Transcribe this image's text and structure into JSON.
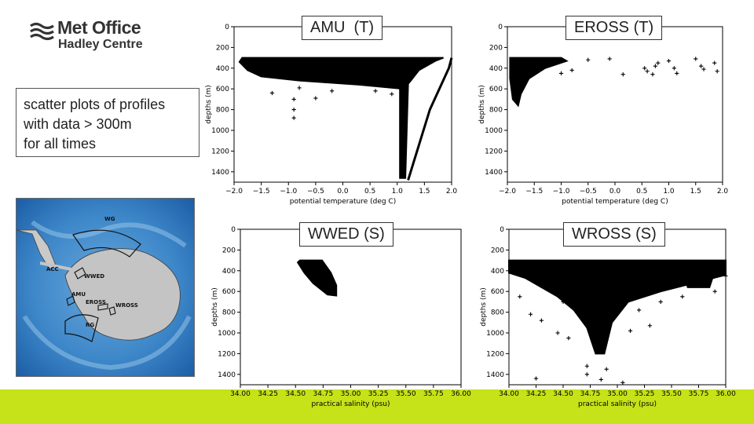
{
  "logo": {
    "line1": "Met Office",
    "line2": "Hadley Centre"
  },
  "note": {
    "lines": [
      "scatter plots of profiles",
      "with data > 300m",
      "for all times"
    ]
  },
  "map": {
    "labels": [
      "WG",
      "ACC",
      "WWED",
      "AMU",
      "EROSS",
      "WROSS",
      "RG"
    ]
  },
  "colors": {
    "footer": "#c6e218",
    "marker": "#000000"
  },
  "chart_data": [
    {
      "type": "scatter",
      "title": "AMU  (T)",
      "xlabel": "potential temperature (deg C)",
      "ylabel": "depths (m)",
      "xlim": [
        -2.0,
        2.0
      ],
      "ylim": [
        1500,
        0
      ],
      "marker": "+",
      "xticks": [
        "−2.0",
        "−1.5",
        "−1.0",
        "−0.5",
        "0.0",
        "0.5",
        "1.0",
        "1.5",
        "2.0"
      ],
      "yticks": [
        "0",
        "200",
        "400",
        "600",
        "800",
        "1000",
        "1200",
        "1400"
      ],
      "xtick_values": [
        -2.0,
        -1.5,
        -1.0,
        -0.5,
        0.0,
        0.5,
        1.0,
        1.5,
        2.0
      ],
      "ytick_values": [
        0,
        200,
        400,
        600,
        800,
        1000,
        1200,
        1400
      ],
      "regions": [
        [
          [
            -1.85,
            300
          ],
          [
            1.85,
            300
          ],
          [
            1.7,
            330
          ],
          [
            1.4,
            420
          ],
          [
            1.25,
            520
          ],
          [
            1.12,
            600
          ],
          [
            0.3,
            560
          ],
          [
            -0.8,
            520
          ],
          [
            -1.5,
            480
          ],
          [
            -1.75,
            420
          ],
          [
            -1.9,
            340
          ]
        ],
        [
          [
            1.05,
            560
          ],
          [
            1.2,
            560
          ],
          [
            1.15,
            1460
          ],
          [
            1.05,
            1460
          ]
        ]
      ],
      "lines": [
        [
          [
            1.2,
            1480
          ],
          [
            1.6,
            800
          ],
          [
            1.95,
            400
          ],
          [
            2.0,
            300
          ]
        ]
      ],
      "points": [
        [
          -1.3,
          640
        ],
        [
          -0.9,
          700
        ],
        [
          -0.8,
          590
        ],
        [
          -0.2,
          620
        ],
        [
          -0.5,
          690
        ],
        [
          -0.9,
          800
        ],
        [
          -0.9,
          880
        ],
        [
          0.6,
          620
        ],
        [
          0.9,
          650
        ]
      ]
    },
    {
      "type": "scatter",
      "title": "EROSS (T)",
      "xlabel": "potential temperature (deg C)",
      "ylabel": "depths (m)",
      "xlim": [
        -2.0,
        2.0
      ],
      "ylim": [
        1500,
        0
      ],
      "marker": "+",
      "xticks": [
        "−2.0",
        "−1.5",
        "−1.0",
        "−0.5",
        "0.0",
        "0.5",
        "1.0",
        "1.5",
        "2.0"
      ],
      "yticks": [
        "0",
        "200",
        "400",
        "600",
        "800",
        "1000",
        "1200",
        "1400"
      ],
      "xtick_values": [
        -2.0,
        -1.5,
        -1.0,
        -0.5,
        0.0,
        0.5,
        1.0,
        1.5,
        2.0
      ],
      "ytick_values": [
        0,
        200,
        400,
        600,
        800,
        1000,
        1200,
        1400
      ],
      "regions": [
        [
          [
            -1.95,
            300
          ],
          [
            -1.0,
            300
          ],
          [
            -0.9,
            330
          ],
          [
            -1.3,
            400
          ],
          [
            -1.6,
            500
          ],
          [
            -1.75,
            650
          ],
          [
            -1.8,
            760
          ],
          [
            -1.9,
            700
          ],
          [
            -1.95,
            500
          ]
        ]
      ],
      "lines": [],
      "points": [
        [
          -0.5,
          320
        ],
        [
          -0.1,
          310
        ],
        [
          0.55,
          400
        ],
        [
          0.6,
          430
        ],
        [
          0.75,
          380
        ],
        [
          0.7,
          460
        ],
        [
          0.8,
          350
        ],
        [
          1.0,
          330
        ],
        [
          1.1,
          400
        ],
        [
          1.15,
          450
        ],
        [
          1.5,
          310
        ],
        [
          1.6,
          380
        ],
        [
          1.65,
          410
        ],
        [
          1.85,
          350
        ],
        [
          1.9,
          430
        ],
        [
          0.15,
          460
        ],
        [
          -0.8,
          420
        ],
        [
          -1.0,
          450
        ]
      ]
    },
    {
      "type": "scatter",
      "title": "WWED (S)",
      "xlabel": "practical salinity (psu)",
      "ylabel": "depths (m)",
      "xlim": [
        34.0,
        36.0
      ],
      "ylim": [
        1500,
        0
      ],
      "marker": "+",
      "xticks": [
        "34.00",
        "34.25",
        "34.50",
        "34.75",
        "35.00",
        "35.25",
        "35.50",
        "35.75",
        "36.00"
      ],
      "yticks": [
        "0",
        "200",
        "400",
        "600",
        "800",
        "1000",
        "1200",
        "1400"
      ],
      "xtick_values": [
        34.0,
        34.25,
        34.5,
        34.75,
        35.0,
        35.25,
        35.5,
        35.75,
        36.0
      ],
      "ytick_values": [
        0,
        200,
        400,
        600,
        800,
        1000,
        1200,
        1400
      ],
      "regions": [
        [
          [
            34.54,
            300
          ],
          [
            34.74,
            300
          ],
          [
            34.82,
            420
          ],
          [
            34.87,
            540
          ],
          [
            34.87,
            640
          ],
          [
            34.79,
            630
          ],
          [
            34.66,
            520
          ],
          [
            34.58,
            420
          ],
          [
            34.52,
            320
          ]
        ]
      ],
      "lines": [],
      "points": []
    },
    {
      "type": "scatter",
      "title": "WROSS (S)",
      "xlabel": "practical salinity (psu)",
      "ylabel": "depths (m)",
      "xlim": [
        34.0,
        36.0
      ],
      "ylim": [
        1500,
        0
      ],
      "marker": "+",
      "xticks": [
        "34.00",
        "34.25",
        "34.50",
        "34.75",
        "35.00",
        "35.25",
        "35.50",
        "35.75",
        "36.00"
      ],
      "yticks": [
        "0",
        "200",
        "400",
        "600",
        "800",
        "1000",
        "1200",
        "1400"
      ],
      "xtick_values": [
        34.0,
        34.25,
        34.5,
        34.75,
        35.0,
        35.25,
        35.5,
        35.75,
        36.0
      ],
      "ytick_values": [
        0,
        200,
        400,
        600,
        800,
        1000,
        1200,
        1400
      ],
      "regions": [
        [
          [
            34.0,
            300
          ],
          [
            36.0,
            300
          ],
          [
            36.0,
            440
          ],
          [
            35.7,
            520
          ],
          [
            35.4,
            600
          ],
          [
            35.1,
            700
          ],
          [
            34.95,
            900
          ],
          [
            34.88,
            1200
          ],
          [
            34.8,
            1200
          ],
          [
            34.72,
            950
          ],
          [
            34.6,
            780
          ],
          [
            34.45,
            650
          ],
          [
            34.3,
            560
          ],
          [
            34.15,
            470
          ],
          [
            34.0,
            420
          ]
        ],
        [
          [
            35.6,
            420
          ],
          [
            35.9,
            400
          ],
          [
            35.85,
            560
          ],
          [
            35.65,
            560
          ]
        ]
      ],
      "lines": [],
      "points": [
        [
          34.25,
          1440
        ],
        [
          34.72,
          1320
        ],
        [
          34.72,
          1400
        ],
        [
          34.85,
          1450
        ],
        [
          34.9,
          1350
        ],
        [
          35.05,
          1480
        ],
        [
          34.45,
          1000
        ],
        [
          34.55,
          1050
        ],
        [
          35.12,
          980
        ],
        [
          35.3,
          930
        ],
        [
          34.2,
          820
        ],
        [
          34.3,
          880
        ],
        [
          34.5,
          700
        ],
        [
          35.2,
          780
        ],
        [
          35.4,
          700
        ],
        [
          35.6,
          650
        ],
        [
          35.9,
          600
        ],
        [
          36.0,
          450
        ],
        [
          34.1,
          650
        ]
      ]
    }
  ]
}
